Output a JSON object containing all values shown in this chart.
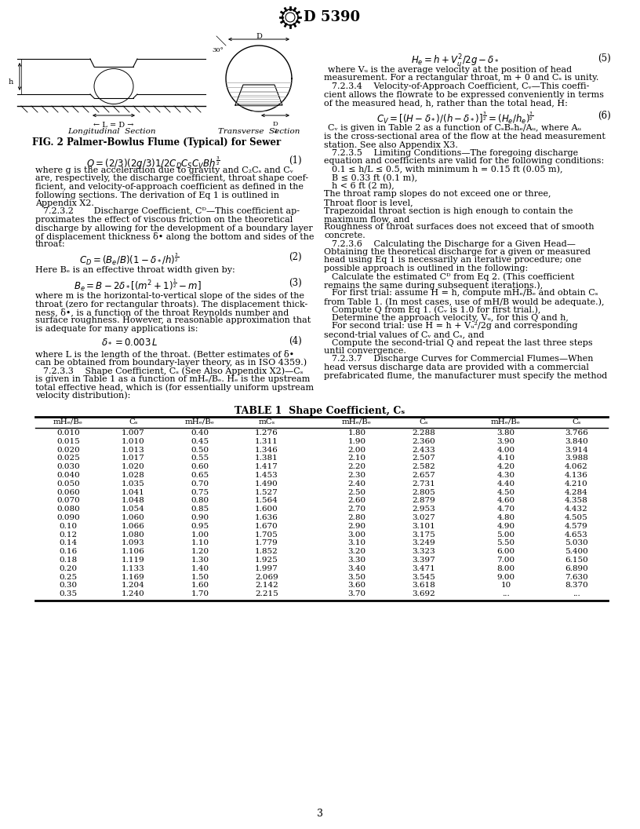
{
  "background_color": "#ffffff",
  "page_number": "3",
  "col1": [
    0.01,
    0.015,
    0.02,
    0.025,
    0.03,
    0.04,
    0.05,
    0.06,
    0.07,
    0.08,
    0.09,
    0.1,
    0.12,
    0.14,
    0.16,
    0.18,
    0.2,
    0.25,
    0.3,
    0.35
  ],
  "col2": [
    1.007,
    1.01,
    1.013,
    1.017,
    1.02,
    1.028,
    1.035,
    1.041,
    1.048,
    1.054,
    1.06,
    1.066,
    1.08,
    1.093,
    1.106,
    1.119,
    1.133,
    1.169,
    1.204,
    1.24
  ],
  "col3": [
    0.4,
    0.45,
    0.5,
    0.55,
    0.6,
    0.65,
    0.7,
    0.75,
    0.8,
    0.85,
    0.9,
    0.95,
    1.0,
    1.1,
    1.2,
    1.3,
    1.4,
    1.5,
    1.6,
    1.7
  ],
  "col4": [
    1.276,
    1.311,
    1.346,
    1.381,
    1.417,
    1.453,
    1.49,
    1.527,
    1.564,
    1.6,
    1.636,
    1.67,
    1.705,
    1.779,
    1.852,
    1.925,
    1.997,
    2.069,
    2.142,
    2.215
  ],
  "col5": [
    1.8,
    1.9,
    2.0,
    2.1,
    2.2,
    2.3,
    2.4,
    2.5,
    2.6,
    2.7,
    2.8,
    2.9,
    3.0,
    3.1,
    3.2,
    3.3,
    3.4,
    3.5,
    3.6,
    3.7
  ],
  "col6": [
    2.288,
    2.36,
    2.433,
    2.507,
    2.582,
    2.657,
    2.731,
    2.805,
    2.879,
    2.953,
    3.027,
    3.101,
    3.175,
    3.249,
    3.323,
    3.397,
    3.471,
    3.545,
    3.618,
    3.692
  ],
  "col7": [
    3.8,
    3.9,
    4.0,
    4.1,
    4.2,
    4.3,
    4.4,
    4.5,
    4.6,
    4.7,
    4.8,
    4.9,
    5.0,
    5.5,
    6.0,
    7.0,
    8.0,
    9.0,
    10.0,
    "..."
  ],
  "col8": [
    3.766,
    3.84,
    3.914,
    3.988,
    4.062,
    4.136,
    4.21,
    4.284,
    4.358,
    4.432,
    4.505,
    4.579,
    4.653,
    5.03,
    5.4,
    6.15,
    6.89,
    7.63,
    8.37,
    "..."
  ]
}
